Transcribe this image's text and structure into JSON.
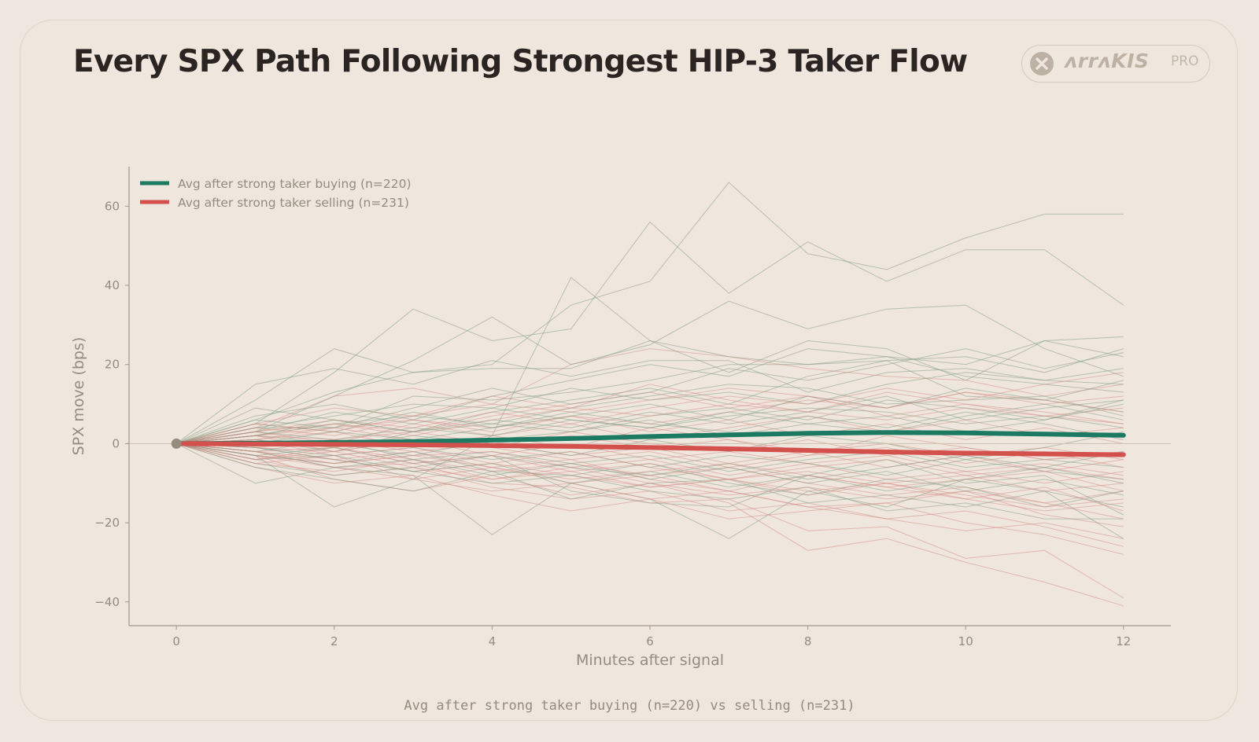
{
  "header": {
    "title": "Every SPX Path Following Strongest HIP-3 Taker Flow"
  },
  "brand": {
    "name": "ᴧrrᴧKIS",
    "tier": "PRO",
    "logo_icon": "x-circle-icon"
  },
  "footer": {
    "caption": "Avg after strong taker buying (n=220) vs selling (n=231)"
  },
  "colors": {
    "background": "#efe7df",
    "buy": "#1b7a61",
    "sell": "#d4504c",
    "buy_paths": "#7e9a7e",
    "sell_paths": "#d38a84",
    "axis": "#a49887",
    "zero_line": "#cfc1b3"
  },
  "chart_data": {
    "type": "line",
    "title": "Every SPX Path Following Strongest HIP-3 Taker Flow",
    "xlabel": "Minutes after signal",
    "ylabel": "SPX move (bps)",
    "xlim": [
      -0.6,
      12.6
    ],
    "ylim": [
      -46,
      70
    ],
    "x_ticks": [
      0,
      2,
      4,
      6,
      8,
      10,
      12
    ],
    "x_tick_labels": [
      "0",
      "2",
      "4",
      "6",
      "8",
      "10",
      "12"
    ],
    "y_ticks": [
      -40,
      -20,
      0,
      20,
      40,
      60
    ],
    "y_tick_labels": [
      "−40",
      "−20",
      "0",
      "20",
      "40",
      "60"
    ],
    "legend_position": "top-left",
    "x": [
      0,
      1,
      2,
      3,
      4,
      5,
      6,
      7,
      8,
      9,
      10,
      11,
      12
    ],
    "series": [
      {
        "name": "Avg after strong taker buying (n=220)",
        "values": [
          0,
          0.1,
          0.3,
          0.5,
          0.9,
          1.3,
          1.8,
          2.2,
          2.6,
          2.8,
          2.7,
          2.4,
          2.1
        ]
      },
      {
        "name": "Avg after strong taker selling (n=231)",
        "values": [
          0,
          -0.1,
          -0.2,
          -0.3,
          -0.5,
          -0.7,
          -1.0,
          -1.3,
          -1.7,
          -2.1,
          -2.4,
          -2.6,
          -2.8
        ]
      }
    ],
    "individual_paths": {
      "buy": [
        [
          0,
          15,
          19,
          15,
          21,
          17,
          21,
          21,
          13,
          18,
          19,
          16,
          15
        ],
        [
          0,
          11,
          24,
          18,
          20,
          35,
          41,
          66,
          48,
          44,
          52,
          58,
          58
        ],
        [
          0,
          5,
          18,
          34,
          26,
          29,
          56,
          38,
          51,
          41,
          49,
          49,
          35
        ],
        [
          0,
          3,
          12,
          21,
          32,
          20,
          25,
          36,
          29,
          34,
          35,
          24,
          17
        ],
        [
          0,
          -3,
          -16,
          -9,
          2,
          42,
          26,
          18,
          26,
          24,
          16,
          26,
          22
        ],
        [
          0,
          6,
          13,
          18,
          19,
          19,
          26,
          22,
          20,
          21,
          22,
          18,
          24
        ],
        [
          0,
          -10,
          -6,
          -8,
          -23,
          -10,
          -14,
          -24,
          -12,
          -16,
          -9,
          -12,
          -24
        ],
        [
          0,
          4,
          4,
          12,
          11,
          13,
          16,
          20,
          20,
          22,
          17,
          15,
          13
        ],
        [
          0,
          9,
          6,
          3,
          8,
          11,
          14,
          10,
          17,
          21,
          12,
          11,
          8
        ],
        [
          0,
          -5,
          -8,
          -6,
          -3,
          -12,
          -15,
          -16,
          -8,
          -4,
          -10,
          -8,
          -18
        ],
        [
          0,
          2,
          5,
          7,
          5,
          9,
          12,
          15,
          14,
          10,
          11,
          12,
          7
        ],
        [
          0,
          -3,
          -5,
          -2,
          -7,
          -8,
          -5,
          -10,
          -13,
          -9,
          -11,
          -16,
          -12
        ],
        [
          0,
          1,
          -2,
          3,
          6,
          4,
          8,
          5,
          8,
          12,
          6,
          9,
          11
        ],
        [
          0,
          -2,
          1,
          -4,
          -2,
          -5,
          -3,
          -7,
          -4,
          -2,
          -6,
          -4,
          -6
        ],
        [
          0,
          4,
          7,
          10,
          9,
          14,
          11,
          13,
          10,
          15,
          18,
          16,
          19
        ],
        [
          0,
          -6,
          -9,
          -12,
          -7,
          -14,
          -10,
          -9,
          -15,
          -13,
          -16,
          -12,
          -16
        ],
        [
          0,
          3,
          1,
          4,
          2,
          6,
          4,
          7,
          9,
          8,
          5,
          7,
          4
        ],
        [
          0,
          -1,
          -3,
          -1,
          -4,
          -2,
          -6,
          -3,
          -5,
          -8,
          -4,
          -7,
          -9
        ],
        [
          0,
          7,
          10,
          6,
          12,
          16,
          20,
          17,
          24,
          22,
          20,
          26,
          27
        ],
        [
          0,
          -4,
          -3,
          -7,
          -10,
          -8,
          -12,
          -14,
          -11,
          -17,
          -15,
          -19,
          -19
        ],
        [
          0,
          2,
          6,
          3,
          5,
          3,
          7,
          9,
          6,
          11,
          9,
          6,
          11
        ],
        [
          0,
          1,
          -1,
          2,
          0,
          -3,
          1,
          -2,
          2,
          0,
          -4,
          -1,
          3
        ],
        [
          0,
          5,
          3,
          8,
          4,
          7,
          10,
          6,
          12,
          9,
          14,
          11,
          16
        ],
        [
          0,
          -2,
          -6,
          -4,
          -8,
          -5,
          -9,
          -6,
          -10,
          -7,
          -12,
          -9,
          -13
        ],
        [
          0,
          3,
          8,
          5,
          9,
          6,
          4,
          8,
          5,
          3,
          7,
          10,
          6
        ],
        [
          0,
          2,
          0,
          -3,
          1,
          3,
          6,
          2,
          5,
          7,
          3,
          6,
          10
        ],
        [
          0,
          -3,
          -1,
          -5,
          -3,
          -6,
          -8,
          -5,
          -9,
          -6,
          -3,
          -6,
          -2
        ],
        [
          0,
          6,
          4,
          9,
          14,
          10,
          13,
          19,
          16,
          20,
          24,
          19,
          23
        ],
        [
          0,
          0,
          3,
          1,
          4,
          8,
          5,
          3,
          7,
          4,
          8,
          5,
          1
        ],
        [
          0,
          -1,
          -4,
          -7,
          -5,
          -10,
          -7,
          -11,
          -8,
          -12,
          -9,
          -6,
          -10
        ]
      ],
      "sell": [
        [
          0,
          -3,
          -9,
          -12,
          -8,
          -13,
          -10,
          -15,
          -27,
          -24,
          -30,
          -35,
          -41
        ],
        [
          0,
          -2,
          -6,
          -5,
          -10,
          -11,
          -15,
          -14,
          -22,
          -21,
          -29,
          -27,
          -39
        ],
        [
          0,
          4,
          12,
          14,
          10,
          20,
          24,
          22,
          19,
          17,
          16,
          12,
          15
        ],
        [
          0,
          -5,
          -3,
          -9,
          -6,
          -10,
          -8,
          -12,
          -16,
          -15,
          -12,
          -18,
          -21
        ],
        [
          0,
          2,
          5,
          3,
          7,
          10,
          13,
          9,
          12,
          7,
          10,
          8,
          5
        ],
        [
          0,
          -1,
          -4,
          -2,
          -6,
          -4,
          -9,
          -12,
          -8,
          -11,
          -14,
          -17,
          -15
        ],
        [
          0,
          3,
          0,
          5,
          2,
          -1,
          4,
          1,
          -3,
          2,
          -1,
          -4,
          -2
        ],
        [
          0,
          -4,
          -8,
          -6,
          -11,
          -14,
          -12,
          -17,
          -15,
          -19,
          -22,
          -20,
          -24
        ],
        [
          0,
          1,
          3,
          -1,
          2,
          5,
          1,
          4,
          7,
          3,
          6,
          2,
          4
        ],
        [
          0,
          -2,
          -1,
          -4,
          -7,
          -5,
          -8,
          -6,
          -10,
          -13,
          -11,
          -15,
          -12
        ],
        [
          0,
          5,
          9,
          7,
          12,
          9,
          15,
          11,
          8,
          13,
          10,
          7,
          9
        ],
        [
          0,
          -6,
          -10,
          -8,
          -13,
          -17,
          -14,
          -19,
          -17,
          -15,
          -20,
          -23,
          -28
        ],
        [
          0,
          2,
          -2,
          1,
          -3,
          0,
          -4,
          -2,
          -5,
          -3,
          -7,
          -5,
          -8
        ],
        [
          0,
          -3,
          -5,
          -3,
          -2,
          -6,
          -4,
          -8,
          -5,
          -9,
          -7,
          -10,
          -7
        ],
        [
          0,
          1,
          4,
          6,
          3,
          7,
          5,
          8,
          11,
          9,
          13,
          10,
          12
        ],
        [
          0,
          -4,
          -2,
          -6,
          -9,
          -7,
          -11,
          -9,
          -13,
          -10,
          -14,
          -11,
          -17
        ],
        [
          0,
          3,
          6,
          4,
          8,
          5,
          9,
          12,
          10,
          14,
          11,
          15,
          18
        ],
        [
          0,
          -1,
          1,
          -2,
          0,
          -3,
          -1,
          -5,
          -2,
          -6,
          -3,
          -7,
          -4
        ],
        [
          0,
          -2,
          -4,
          -7,
          -5,
          -8,
          -11,
          -9,
          -12,
          -10,
          -13,
          -16,
          -14
        ],
        [
          0,
          2,
          1,
          3,
          0,
          2,
          -1,
          1,
          -2,
          0,
          -3,
          -1,
          -4
        ],
        [
          0,
          -5,
          -7,
          -4,
          -9,
          -6,
          -10,
          -13,
          -11,
          -14,
          -12,
          -15,
          -19
        ],
        [
          0,
          4,
          2,
          6,
          4,
          7,
          3,
          6,
          2,
          5,
          1,
          4,
          0
        ],
        [
          0,
          -3,
          -6,
          -9,
          -12,
          -10,
          -14,
          -12,
          -16,
          -19,
          -17,
          -21,
          -26
        ],
        [
          0,
          1,
          -3,
          -1,
          -5,
          -2,
          -6,
          -9,
          -7,
          -10,
          -8,
          -12,
          -10
        ],
        [
          0,
          3,
          5,
          2,
          6,
          9,
          7,
          10,
          8,
          6,
          9,
          7,
          5
        ],
        [
          0,
          -1,
          -2,
          1,
          -1,
          -4,
          -2,
          -6,
          -3,
          -1,
          -5,
          -2,
          -6
        ],
        [
          0,
          2,
          4,
          1,
          -1,
          3,
          0,
          -2,
          1,
          -3,
          -1,
          -4,
          -3
        ],
        [
          0,
          -4,
          -1,
          -5,
          -3,
          -7,
          -5,
          -9,
          -6,
          -4,
          -8,
          -6,
          -9
        ],
        [
          0,
          5,
          3,
          7,
          10,
          8,
          11,
          14,
          12,
          9,
          13,
          11,
          8
        ],
        [
          0,
          -2,
          -5,
          -3,
          -6,
          -9,
          -7,
          -5,
          -8,
          -11,
          -9,
          -7,
          -12
        ]
      ]
    }
  }
}
